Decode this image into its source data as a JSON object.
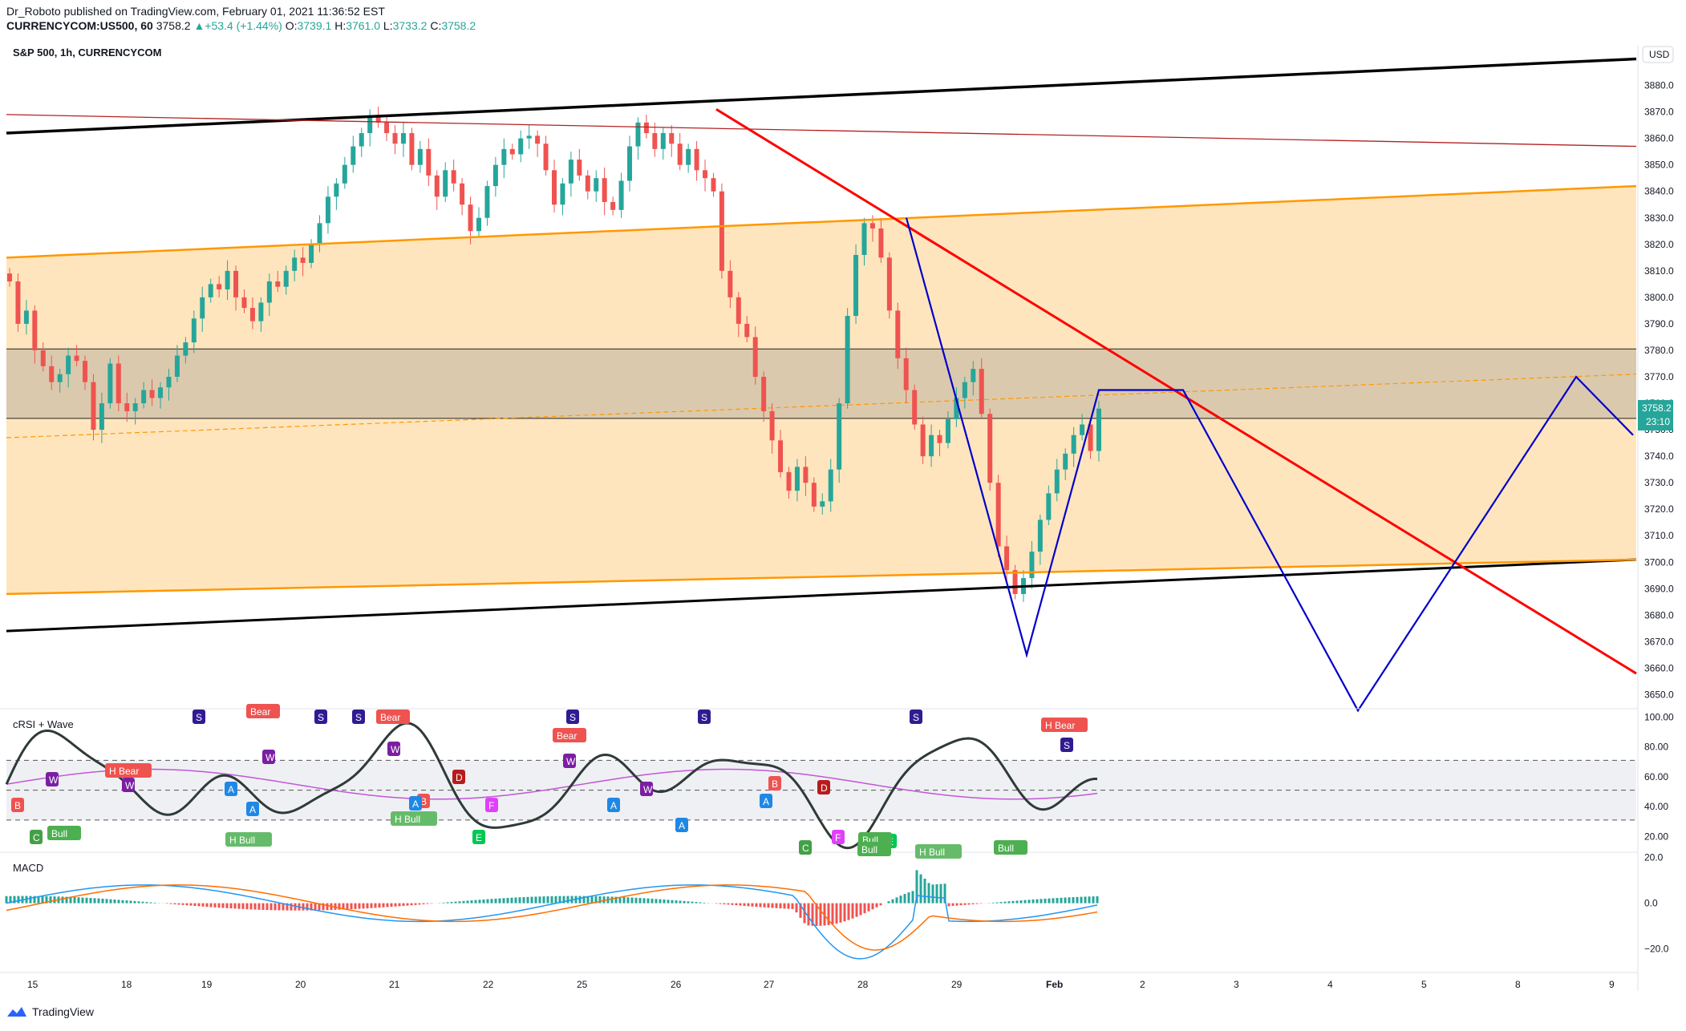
{
  "header": {
    "author": "Dr_Roboto",
    "published_text": "published on TradingView.com, February 01, 2021 11:36:52 EST",
    "symbol": "CURRENCYCOM:US500, 60",
    "last": "3758.2",
    "change": "+53.4 (+1.44%)",
    "ohlc": {
      "o_label": "O:",
      "o": "3739.1",
      "h_label": "H:",
      "h": "3761.0",
      "l_label": "L:",
      "l": "3733.2",
      "c_label": "C:",
      "c": "3758.2"
    }
  },
  "footer": {
    "brand": "TradingView"
  },
  "colors": {
    "up": "#26a69a",
    "down": "#ef5350",
    "channel": "#ff9800",
    "channel_fill": "#ffe0b2",
    "trend_down": "#ff0000",
    "projection": "#0000cc",
    "crsi": "#2f3b36",
    "wave": "#c157d6",
    "macd": "#2196f3",
    "signal": "#ff6d00"
  },
  "chart_data": [
    {
      "type": "candlestick",
      "title": "S&P 500, 1h, CURRENCYCOM",
      "currency": "USD",
      "last_price": "3758.2",
      "countdown": "23:10",
      "ylim": [
        3645,
        3895
      ],
      "yticks": [
        "3880.0",
        "3870.0",
        "3860.0",
        "3850.0",
        "3840.0",
        "3830.0",
        "3820.0",
        "3810.0",
        "3800.0",
        "3790.0",
        "3780.0",
        "3770.0",
        "3760.0",
        "3750.0",
        "3740.0",
        "3730.0",
        "3720.0",
        "3710.0",
        "3700.0",
        "3690.0",
        "3680.0",
        "3670.0",
        "3660.0",
        "3650.0"
      ],
      "x_labels": [
        "15",
        "18",
        "19",
        "20",
        "21",
        "22",
        "25",
        "26",
        "27",
        "28",
        "29",
        "Feb",
        "2",
        "3",
        "4",
        "5",
        "8",
        "9"
      ],
      "closes": [
        3806,
        3790,
        3795,
        3780,
        3774,
        3768,
        3771,
        3778,
        3776,
        3768,
        3750,
        3760,
        3775,
        3760,
        3757,
        3760,
        3765,
        3762,
        3766,
        3770,
        3778,
        3783,
        3792,
        3800,
        3805,
        3803,
        3810,
        3800,
        3796,
        3791,
        3798,
        3806,
        3804,
        3810,
        3815,
        3813,
        3820,
        3828,
        3838,
        3843,
        3850,
        3857,
        3862,
        3868,
        3866,
        3862,
        3858,
        3862,
        3850,
        3856,
        3846,
        3838,
        3848,
        3843,
        3835,
        3825,
        3830,
        3842,
        3850,
        3856,
        3854,
        3860,
        3861,
        3858,
        3848,
        3835,
        3843,
        3852,
        3846,
        3840,
        3845,
        3836,
        3833,
        3844,
        3857,
        3866,
        3862,
        3856,
        3862,
        3858,
        3850,
        3856,
        3848,
        3845,
        3840,
        3810,
        3800,
        3790,
        3785,
        3770,
        3757,
        3746,
        3734,
        3727,
        3736,
        3730,
        3721,
        3723,
        3735,
        3760,
        3793,
        3816,
        3828,
        3826,
        3815,
        3795,
        3777,
        3765,
        3752,
        3740,
        3748,
        3745,
        3754,
        3762,
        3768,
        3773,
        3756,
        3730,
        3706,
        3697,
        3688,
        3694,
        3704,
        3716,
        3726,
        3735,
        3741,
        3748,
        3752,
        3742,
        3758
      ],
      "price_lines": [
        3780.5,
        3754.3
      ],
      "trend_lines": [
        {
          "name": "upper-channel-black",
          "from": [
            "start",
            3862
          ],
          "to": [
            "end",
            3890
          ]
        },
        {
          "name": "lower-channel-black",
          "from": [
            "start",
            3674
          ],
          "to": [
            "end",
            3701
          ]
        },
        {
          "name": "upper-channel-orange",
          "from": [
            "start",
            3815
          ],
          "to": [
            "end",
            3842
          ]
        },
        {
          "name": "lower-channel-orange",
          "from": [
            "start",
            3688
          ],
          "to": [
            "end",
            3701
          ]
        },
        {
          "name": "resistance-darkred",
          "from": [
            "start",
            3869
          ],
          "to": [
            "end",
            3857
          ]
        },
        {
          "name": "downtrend-red",
          "from": [
            "21 Jan",
            3871
          ],
          "to": [
            "end",
            3658
          ]
        }
      ],
      "projection_path": [
        [
          3830,
          "28"
        ],
        [
          3665,
          "29"
        ],
        [
          3765,
          "Feb"
        ],
        [
          3765,
          "2"
        ],
        [
          3644,
          "4"
        ],
        [
          3770,
          "8"
        ],
        [
          3748,
          "9"
        ]
      ]
    },
    {
      "type": "line",
      "title": "cRSI + Wave",
      "yticks": [
        "100.00",
        "80.00",
        "60.00",
        "40.00",
        "20.00"
      ],
      "ylim": [
        10,
        105
      ],
      "levels": [
        71,
        51,
        31
      ],
      "signals": [
        "S",
        "S",
        "S",
        "S",
        "S",
        "S",
        "S",
        "W",
        "W",
        "W",
        "W",
        "W",
        "W",
        "B",
        "B",
        "B",
        "D",
        "D",
        "A",
        "A",
        "A",
        "A",
        "A",
        "A",
        "C",
        "C",
        "E",
        "E",
        "F",
        "F",
        "Bull",
        "Bull",
        "Bull",
        "Bull",
        "H Bull",
        "H Bull",
        "H Bull",
        "Bear",
        "Bear",
        "Bear",
        "H Bear",
        "H Bear"
      ]
    },
    {
      "type": "bar",
      "title": "MACD",
      "yticks": [
        "20.0",
        "0.0",
        "−20.0"
      ],
      "ylim": [
        -30,
        22
      ]
    }
  ]
}
